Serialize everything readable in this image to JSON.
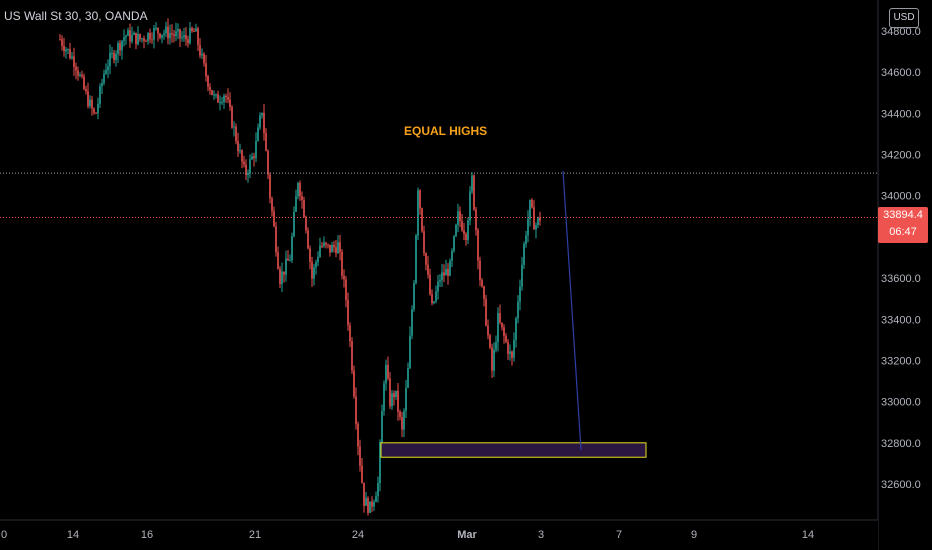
{
  "symbol_title": "US Wall St 30, 30, OANDA",
  "currency": "USD",
  "last_price": "33894.4",
  "countdown": "06:47",
  "annotation": "EQUAL HIGHS",
  "colors": {
    "up": "#26a69a",
    "down": "#ef5350",
    "zone_border": "#e8e31a",
    "zone_fill": "#2a1640",
    "arrow": "#2f3ea8",
    "annotation": "#f7a21b"
  },
  "chart_data": {
    "type": "candlestick",
    "y_ticks": [
      "32600.0",
      "32800.0",
      "33000.0",
      "33200.0",
      "33400.0",
      "33600.0",
      "33800.0",
      "34000.0",
      "34200.0",
      "34400.0",
      "34600.0"
    ],
    "y_top_partial": "34800.0",
    "x_ticks": [
      "0",
      "14",
      "16",
      "21",
      "24",
      "Mar",
      "3",
      "7",
      "9",
      "14"
    ],
    "ylim": [
      32450,
      34820
    ],
    "equal_highs_level": 34110,
    "current_price": 33894.4,
    "demand_zone": {
      "low": 32730,
      "high": 32800
    },
    "projection": {
      "from": 34120,
      "to": 32765
    },
    "path": [
      [
        60,
        34760
      ],
      [
        75,
        34650
      ],
      [
        85,
        34500
      ],
      [
        95,
        34380
      ],
      [
        105,
        34620
      ],
      [
        115,
        34700
      ],
      [
        125,
        34780
      ],
      [
        140,
        34760
      ],
      [
        155,
        34800
      ],
      [
        170,
        34790
      ],
      [
        185,
        34760
      ],
      [
        195,
        34800
      ],
      [
        205,
        34600
      ],
      [
        215,
        34460
      ],
      [
        225,
        34500
      ],
      [
        235,
        34300
      ],
      [
        245,
        34100
      ],
      [
        255,
        34220
      ],
      [
        262,
        34420
      ],
      [
        270,
        34000
      ],
      [
        280,
        33600
      ],
      [
        290,
        33700
      ],
      [
        298,
        34080
      ],
      [
        305,
        33900
      ],
      [
        312,
        33600
      ],
      [
        320,
        33760
      ],
      [
        330,
        33740
      ],
      [
        338,
        33760
      ],
      [
        346,
        33500
      ],
      [
        352,
        33180
      ],
      [
        358,
        32800
      ],
      [
        364,
        32520
      ],
      [
        370,
        32480
      ],
      [
        378,
        32600
      ],
      [
        385,
        33200
      ],
      [
        390,
        33000
      ],
      [
        395,
        33050
      ],
      [
        402,
        32850
      ],
      [
        408,
        33150
      ],
      [
        414,
        33600
      ],
      [
        418,
        34050
      ],
      [
        425,
        33700
      ],
      [
        432,
        33450
      ],
      [
        440,
        33600
      ],
      [
        450,
        33650
      ],
      [
        458,
        33900
      ],
      [
        466,
        33820
      ],
      [
        472,
        34080
      ],
      [
        480,
        33600
      ],
      [
        486,
        33400
      ],
      [
        492,
        33150
      ],
      [
        498,
        33400
      ],
      [
        505,
        33300
      ],
      [
        512,
        33200
      ],
      [
        518,
        33500
      ],
      [
        525,
        33800
      ],
      [
        530,
        33950
      ],
      [
        535,
        33850
      ],
      [
        540,
        33894
      ]
    ]
  }
}
